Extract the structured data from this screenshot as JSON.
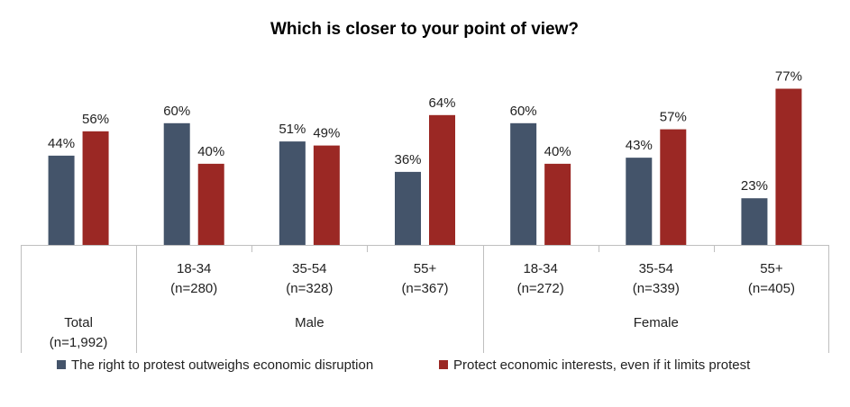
{
  "chart_data": {
    "type": "bar",
    "title": "Which is closer to your point of view?",
    "xlabel": "",
    "ylabel": "",
    "ylim": [
      0,
      100
    ],
    "grid": false,
    "legend_position": "bottom",
    "colors": {
      "series1": "#44546A",
      "series2": "#9B2824"
    },
    "groups": [
      {
        "name": "",
        "categories": [
          {
            "line1": "Total",
            "line2": "(n=1,992)"
          }
        ]
      },
      {
        "name": "Male",
        "categories": [
          {
            "line1": "18-34",
            "line2": "(n=280)"
          },
          {
            "line1": "35-54",
            "line2": "(n=328)"
          },
          {
            "line1": "55+",
            "line2": "(n=367)"
          }
        ]
      },
      {
        "name": "Female",
        "categories": [
          {
            "line1": "18-34",
            "line2": "(n=272)"
          },
          {
            "line1": "35-54",
            "line2": "(n=339)"
          },
          {
            "line1": "55+",
            "line2": "(n=405)"
          }
        ]
      }
    ],
    "series": [
      {
        "name": "The right to protest outweighs economic disruption",
        "values": [
          44,
          60,
          51,
          36,
          60,
          43,
          23
        ],
        "labels": [
          "44%",
          "60%",
          "51%",
          "36%",
          "60%",
          "43%",
          "23%"
        ]
      },
      {
        "name": "Protect economic interests, even if it limits protest",
        "values": [
          56,
          40,
          49,
          64,
          40,
          57,
          77
        ],
        "labels": [
          "56%",
          "40%",
          "49%",
          "64%",
          "40%",
          "57%",
          "77%"
        ]
      }
    ]
  }
}
